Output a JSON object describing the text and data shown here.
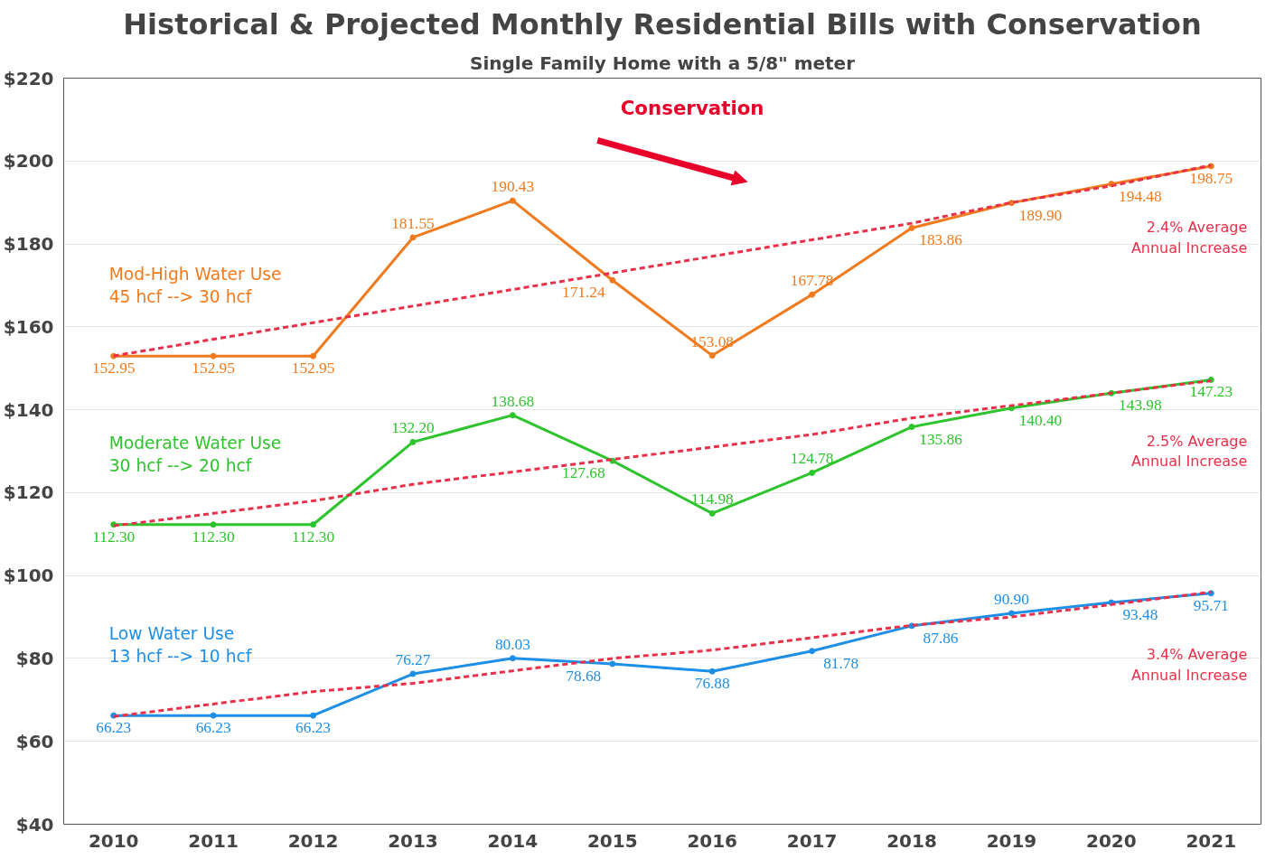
{
  "chart_data": {
    "type": "line",
    "title": "Historical & Projected Monthly Residential Bills with Conservation",
    "subtitle": "Single Family Home with a 5/8\" meter",
    "categories": [
      "2010",
      "2011",
      "2012",
      "2013",
      "2014",
      "2015",
      "2016",
      "2017",
      "2018",
      "2019",
      "2020",
      "2021"
    ],
    "ylim": [
      40,
      220
    ],
    "yticks": [
      {
        "value": 40,
        "label": "$40"
      },
      {
        "value": 60,
        "label": "$60"
      },
      {
        "value": 80,
        "label": "$80"
      },
      {
        "value": 100,
        "label": "$100"
      },
      {
        "value": 120,
        "label": "$120"
      },
      {
        "value": 140,
        "label": "$140"
      },
      {
        "value": 160,
        "label": "$160"
      },
      {
        "value": 180,
        "label": "$180"
      },
      {
        "value": 200,
        "label": "$200"
      },
      {
        "value": 220,
        "label": "$220"
      }
    ],
    "grid": "y",
    "legend": false,
    "marker": "circle",
    "line_style": "solid",
    "series": [
      {
        "name": "Mod-High Water Use\n45 hcf --> 30 hcf",
        "color": "#f07a1e",
        "values": [
          152.95,
          152.95,
          152.95,
          181.55,
          190.43,
          171.24,
          153.08,
          167.78,
          183.86,
          189.9,
          194.48,
          198.75
        ],
        "value_labels": [
          "152.95",
          "152.95",
          "152.95",
          "181.55",
          "190.43",
          "171.24",
          "153.08",
          "167.78",
          "183.86",
          "189.90",
          "194.48",
          "198.75"
        ]
      },
      {
        "name": "Moderate Water Use\n30 hcf --> 20 hcf",
        "color": "#2ec42e",
        "values": [
          112.3,
          112.3,
          112.3,
          132.2,
          138.68,
          127.68,
          114.98,
          124.78,
          135.86,
          140.4,
          143.98,
          147.23
        ],
        "value_labels": [
          "112.30",
          "112.30",
          "112.30",
          "132.20",
          "138.68",
          "127.68",
          "114.98",
          "124.78",
          "135.86",
          "140.40",
          "143.98",
          "147.23"
        ]
      },
      {
        "name": "Low Water Use\n13 hcf --> 10 hcf",
        "color": "#1e8fe6",
        "values": [
          66.23,
          66.23,
          66.23,
          76.27,
          80.03,
          78.68,
          76.88,
          81.78,
          87.86,
          90.9,
          93.48,
          95.71
        ],
        "value_labels": [
          "66.23",
          "66.23",
          "66.23",
          "76.27",
          "80.03",
          "78.68",
          "76.88",
          "81.78",
          "87.86",
          "90.90",
          "93.48",
          "95.71"
        ]
      },
      {
        "type": "line",
        "line_style": "dashed",
        "marker": "none",
        "color": "#e8304a",
        "values": [
          153,
          157,
          161,
          165,
          169,
          173,
          177,
          181,
          185,
          190,
          194,
          199
        ]
      },
      {
        "type": "line",
        "line_style": "dashed",
        "marker": "none",
        "color": "#e8304a",
        "values": [
          112,
          115,
          118,
          122,
          125,
          128,
          131,
          134,
          138,
          141,
          144,
          147
        ]
      },
      {
        "type": "line",
        "line_style": "dashed",
        "marker": "none",
        "color": "#e8304a",
        "values": [
          66,
          69,
          72,
          74,
          77,
          80,
          82,
          85,
          88,
          90,
          93,
          96
        ]
      }
    ],
    "annotations": [
      "Conservation",
      "2.4% Average\nAnnual Increase",
      "2.5% Average\nAnnual Increase",
      "3.4% Average\nAnnual Increase"
    ]
  }
}
